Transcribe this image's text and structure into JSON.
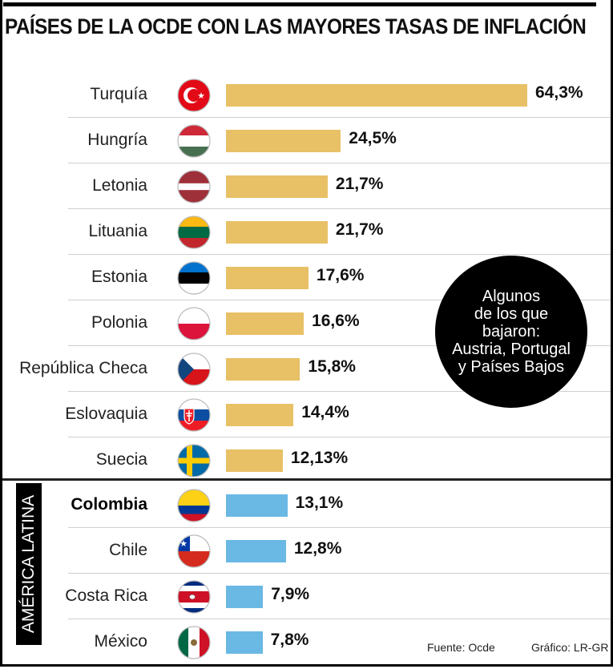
{
  "chart_data": {
    "type": "bar",
    "orientation": "horizontal",
    "title": "PAÍSES DE LA OCDE CON LAS MAYORES TASAS DE INFLACIÓN",
    "unit": "%",
    "xlim": [
      0,
      64.3
    ],
    "series": [
      {
        "name": "OCDE",
        "color": "#e8c066",
        "rows": [
          {
            "country": "Turquía",
            "flag": "tr",
            "value": 64.3,
            "label": "64,3%"
          },
          {
            "country": "Hungría",
            "flag": "hu",
            "value": 24.5,
            "label": "24,5%"
          },
          {
            "country": "Letonia",
            "flag": "lv",
            "value": 21.7,
            "label": "21,7%"
          },
          {
            "country": "Lituania",
            "flag": "lt",
            "value": 21.7,
            "label": "21,7%"
          },
          {
            "country": "Estonia",
            "flag": "ee",
            "value": 17.6,
            "label": "17,6%"
          },
          {
            "country": "Polonia",
            "flag": "pl",
            "value": 16.6,
            "label": "16,6%"
          },
          {
            "country": "República Checa",
            "flag": "cz",
            "value": 15.8,
            "label": "15,8%"
          },
          {
            "country": "Eslovaquia",
            "flag": "sk",
            "value": 14.4,
            "label": "14,4%"
          },
          {
            "country": "Suecia",
            "flag": "se",
            "value": 12.13,
            "label": "12,13%"
          }
        ]
      },
      {
        "name": "AMÉRICA LATINA",
        "color": "#6ab8e4",
        "rows": [
          {
            "country": "Colombia",
            "flag": "co",
            "value": 13.1,
            "label": "13,1%",
            "bold": true
          },
          {
            "country": "Chile",
            "flag": "cl",
            "value": 12.8,
            "label": "12,8%"
          },
          {
            "country": "Costa Rica",
            "flag": "cr",
            "value": 7.9,
            "label": "7,9%"
          },
          {
            "country": "México",
            "flag": "mx",
            "value": 7.8,
            "label": "7,8%"
          }
        ]
      }
    ],
    "group_label": "AMÉRICA LATINA",
    "annotation": [
      "Algunos",
      "de los que",
      "bajaron:",
      "Austria, Portugal",
      "y Países Bajos"
    ],
    "source": "Fuente: Ocde",
    "credit": "Gráfico: LR-GR"
  }
}
